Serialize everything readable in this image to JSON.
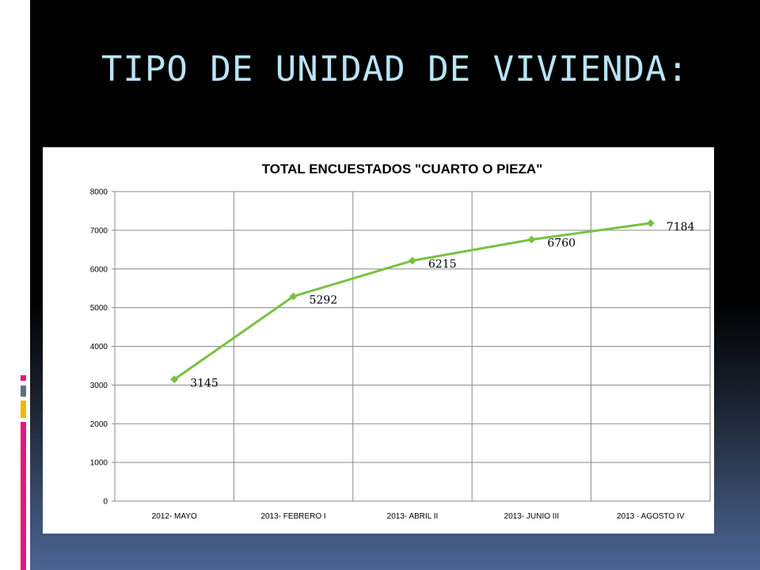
{
  "slide": {
    "title": "TIPO DE UNIDAD DE VIVIENDA:"
  },
  "colors": {
    "title": "#b9e4f7",
    "series": "#7ac142",
    "chart_background": "#ffffff",
    "accent_pink": "#e6177a",
    "accent_gray": "#5c6f7d",
    "accent_yellow": "#f2b705"
  },
  "chart_data": {
    "type": "line",
    "title": "TOTAL ENCUESTADOS \"CUARTO O PIEZA\"",
    "xlabel": "",
    "ylabel": "",
    "categories": [
      "2012- MAYO",
      "2013- FEBRERO I",
      "2013- ABRIL II",
      "2013- JUNIO III",
      "2013 - AGOSTO IV"
    ],
    "series": [
      {
        "values": [
          3145,
          5292,
          6215,
          6760,
          7184
        ],
        "marker": "diamond"
      }
    ],
    "data_labels": [
      "3145",
      "5292",
      "6215",
      "6760",
      "7184"
    ],
    "ylim": [
      0,
      8000
    ],
    "yticks": [
      0,
      1000,
      2000,
      3000,
      4000,
      5000,
      6000,
      7000,
      8000
    ],
    "grid": true,
    "legend": "none"
  }
}
